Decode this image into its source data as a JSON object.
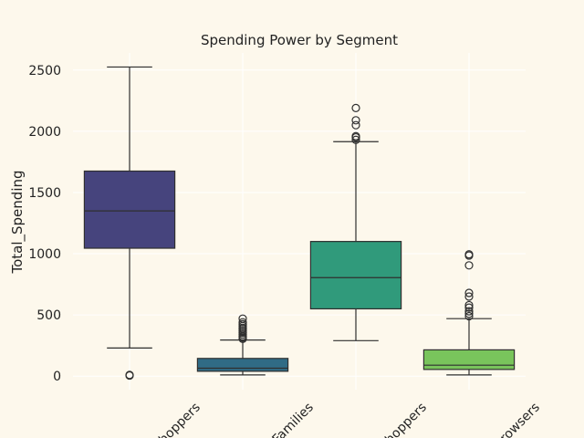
{
  "chart_data": {
    "type": "box",
    "title": "Spending Power by Segment",
    "xlabel": "",
    "ylabel": "Total_Spending",
    "ylim": [
      -110,
      2640
    ],
    "y_ticks": [
      0,
      500,
      1000,
      1500,
      2000,
      2500
    ],
    "grid": true,
    "colors": {
      "background": "#fdf8ec",
      "grid": "#ffffff",
      "line": "#2f2f2f"
    },
    "categories": [
      "...hoppers",
      "...Families",
      "...hoppers",
      "...rowsers"
    ],
    "boxes": [
      {
        "category_index": 0,
        "color": "#46447d",
        "whisker_low": 230,
        "q1": 1045,
        "median": 1350,
        "q3": 1675,
        "whisker_high": 2525,
        "outliers": [
          5,
          10
        ]
      },
      {
        "category_index": 1,
        "color": "#306b85",
        "whisker_low": 10,
        "q1": 40,
        "median": 65,
        "q3": 145,
        "whisker_high": 295,
        "outliers": [
          305,
          315,
          325,
          340,
          355,
          370,
          385,
          395,
          410,
          425,
          440,
          470
        ]
      },
      {
        "category_index": 2,
        "color": "#309a7b",
        "whisker_low": 290,
        "q1": 550,
        "median": 805,
        "q3": 1100,
        "whisker_high": 1915,
        "outliers": [
          1930,
          1950,
          1960,
          2050,
          2090,
          2190
        ]
      },
      {
        "category_index": 3,
        "color": "#79c45c",
        "whisker_low": 10,
        "q1": 55,
        "median": 90,
        "q3": 215,
        "whisker_high": 470,
        "outliers": [
          490,
          510,
          530,
          560,
          580,
          650,
          680,
          905,
          985,
          995
        ]
      }
    ]
  }
}
